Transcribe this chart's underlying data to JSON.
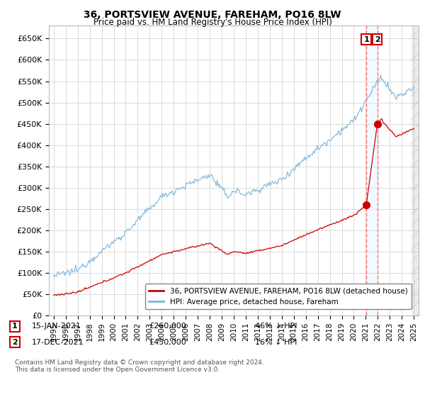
{
  "title1": "36, PORTSVIEW AVENUE, FAREHAM, PO16 8LW",
  "title2": "Price paid vs. HM Land Registry's House Price Index (HPI)",
  "ylabel_ticks": [
    "£0",
    "£50K",
    "£100K",
    "£150K",
    "£200K",
    "£250K",
    "£300K",
    "£350K",
    "£400K",
    "£450K",
    "£500K",
    "£550K",
    "£600K",
    "£650K"
  ],
  "ytick_values": [
    0,
    50000,
    100000,
    150000,
    200000,
    250000,
    300000,
    350000,
    400000,
    450000,
    500000,
    550000,
    600000,
    650000
  ],
  "ylim": [
    0,
    680000
  ],
  "hpi_color": "#7ab4d8",
  "price_color": "#cc0000",
  "annotation_box_color": "#cc0000",
  "vline_color": "#ff6666",
  "vshade_color": "#ddeeff",
  "legend1_label": "36, PORTSVIEW AVENUE, FAREHAM, PO16 8LW (detached house)",
  "legend2_label": "HPI: Average price, detached house, Fareham",
  "annotation1_label": "1",
  "annotation1_date": "15-JAN-2021",
  "annotation1_price": "£260,000",
  "annotation1_pct": "46% ↓ HPI",
  "annotation2_label": "2",
  "annotation2_date": "17-DEC-2021",
  "annotation2_price": "£450,000",
  "annotation2_pct": "16% ↓ HPI",
  "footnote": "Contains HM Land Registry data © Crown copyright and database right 2024.\nThis data is licensed under the Open Government Licence v3.0.",
  "sale1_year": 2021.04,
  "sale1_price": 260000,
  "sale2_year": 2021.96,
  "sale2_price": 450000,
  "background_color": "#ffffff",
  "grid_color": "#cccccc"
}
